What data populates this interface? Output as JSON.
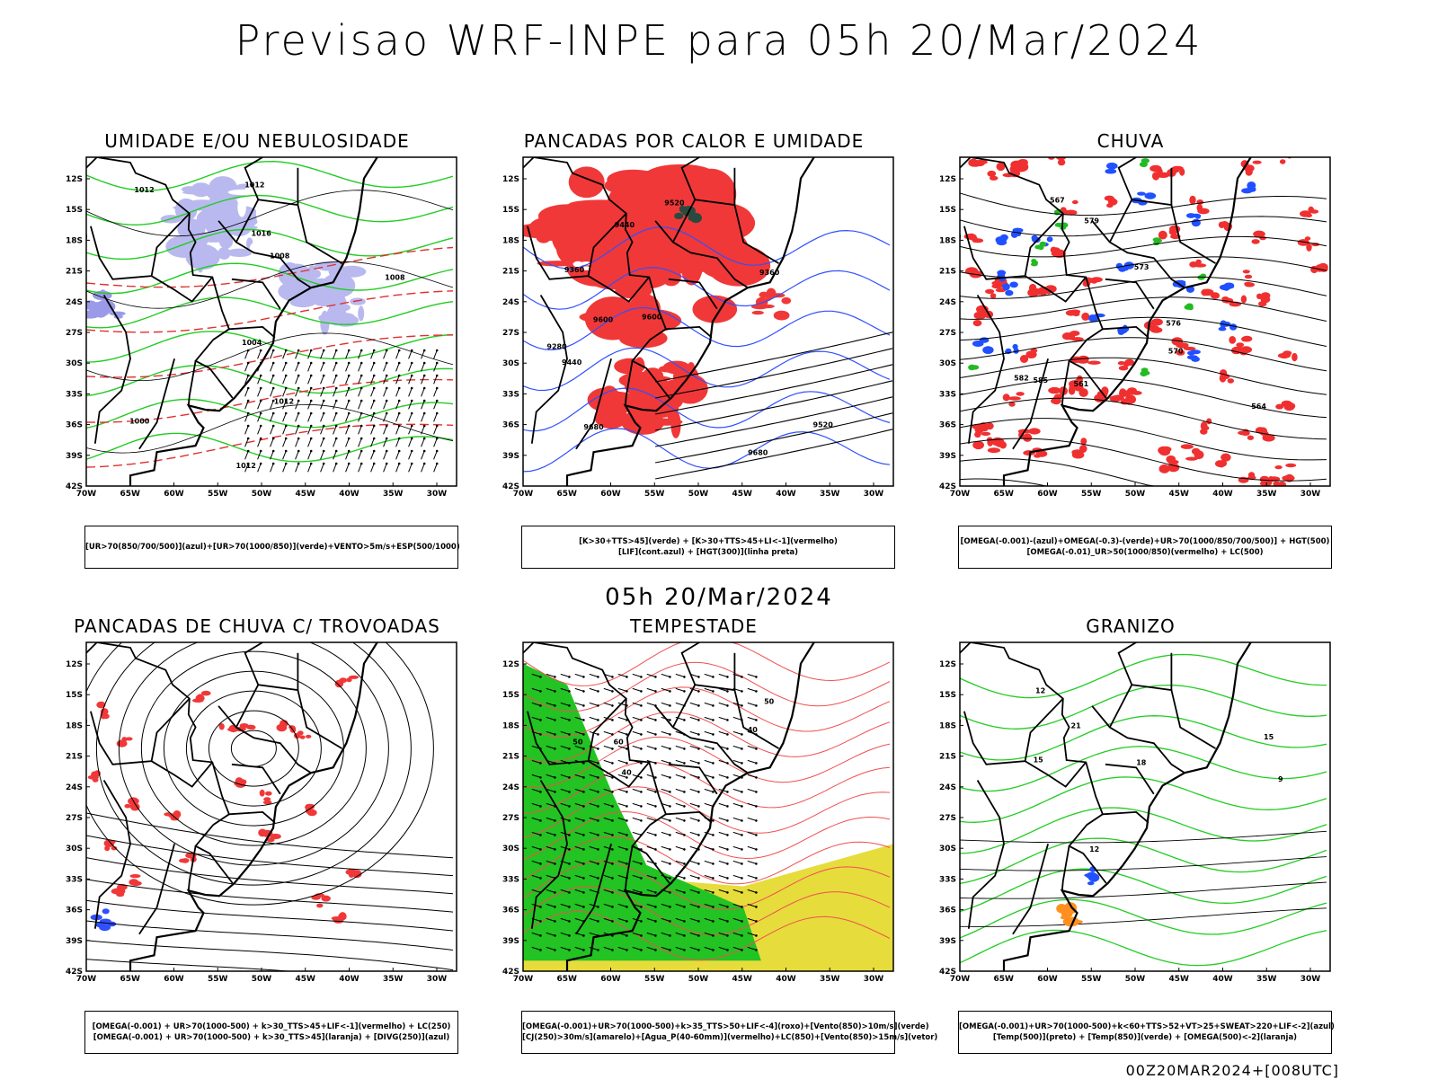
{
  "main_title": "Previsao WRF-INPE  para 05h 20/Mar/2024",
  "mid_title": "05h 20/Mar/2024",
  "footer": "00Z20MAR2024+[008UTC]",
  "lat_labels": [
    "12S",
    "15S",
    "18S",
    "21S",
    "24S",
    "27S",
    "30S",
    "33S",
    "36S",
    "39S",
    "42S"
  ],
  "lon_labels": [
    "70W",
    "65W",
    "60W",
    "55W",
    "50W",
    "45W",
    "40W",
    "35W",
    "30W"
  ],
  "panels": [
    {
      "title": "UMIDADE E/OU NEBULOSIDADE",
      "legend": [
        "[UR>70(850/700/500)](azul)+[UR>70(1000/850)](verde)+VENTO>5m/s+ESP(500/1000)"
      ],
      "contour_labels": [
        "1012",
        "1008",
        "1012",
        "1012",
        "1008",
        "1004",
        "1000",
        "1016",
        "1012"
      ]
    },
    {
      "title": "PANCADAS POR CALOR E UMIDADE",
      "legend": [
        "[K>30+TTS>45](verde) + [K>30+TTS>45+LI<-1](vermelho)",
        "[LIF](cont.azul) + [HGT(300)](linha preta)"
      ],
      "contour_labels": [
        "9680",
        "9600",
        "9520",
        "9440",
        "9360",
        "9280",
        "9680",
        "9600",
        "9520",
        "9440",
        "9360"
      ]
    },
    {
      "title": "CHUVA",
      "legend": [
        "[OMEGA(-0.001)-(azul)+OMEGA(-0.3)-(verde)+UR>70(1000/850/700/500)] + HGT(500)",
        "[OMEGA(-0.01)_UR>50(1000/850)(vermelho) + LC(500)"
      ],
      "contour_labels": [
        "585",
        "582",
        "579",
        "576",
        "573",
        "570",
        "567",
        "564",
        "561"
      ]
    },
    {
      "title": "PANCADAS DE CHUVA C/ TROVOADAS",
      "legend": [
        "[OMEGA(-0.001) + UR>70(1000-500) + k>30_TTS>45+LIF<-1](vermelho) + LC(250)",
        "[OMEGA(-0.001) + UR>70(1000-500) + k>30_TTS>45](laranja) + [DIVG(250)](azul)"
      ],
      "contour_labels": []
    },
    {
      "title": "TEMPESTADE",
      "legend": [
        "[OMEGA(-0.001)+UR>70(1000-500)+k>35_TTS>50+LIF<-4](roxo)+[Vento(850)>10m/s](verde)",
        "[CJ(250)>30m/s](amarelo)+[Agua_P(40-60mm)](vermelho)+LC(850)+[Vento(850)>15m/s](vetor)"
      ],
      "contour_labels": [
        "40",
        "50",
        "60",
        "40",
        "50"
      ]
    },
    {
      "title": "GRANIZO",
      "legend": [
        "[OMEGA(-0.001)+UR>70(1000-500)+k<60+TTS>52+VT>25+SWEAT>220+LIF<-2](azul)",
        "[Temp(500)](preto) + [Temp(850)](verde) + [OMEGA(500)<-2](laranja)"
      ],
      "contour_labels": [
        "21",
        "18",
        "15",
        "12",
        "15",
        "12",
        "9"
      ]
    }
  ]
}
